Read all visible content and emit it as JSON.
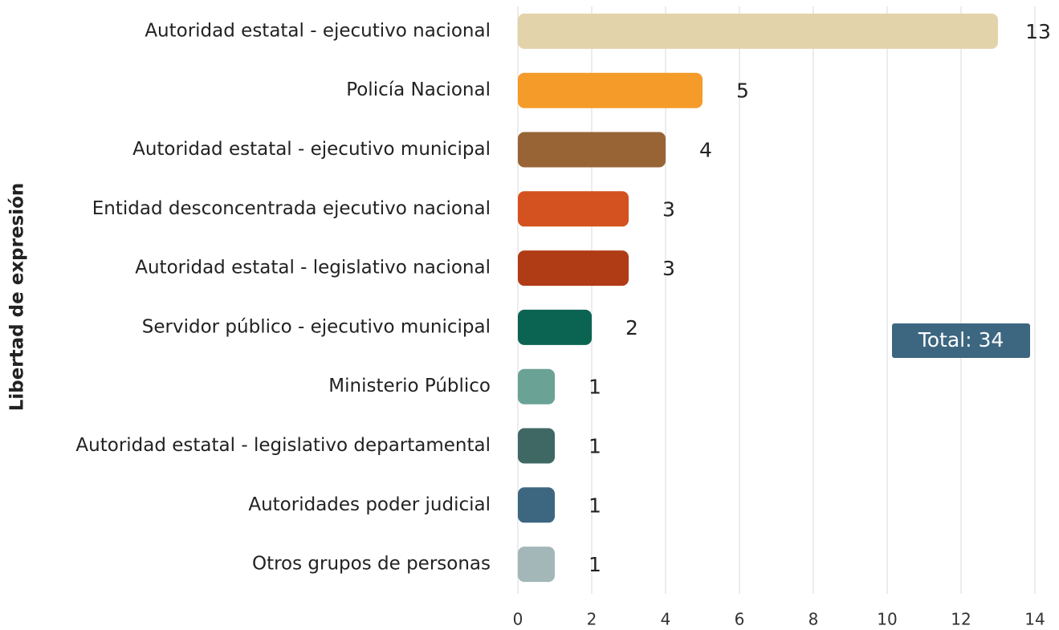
{
  "chart_data": {
    "type": "hbar",
    "ylabel": "Libertad de expresión",
    "annotation": "Total: 34",
    "categories": [
      "Autoridad estatal - ejecutivo nacional",
      "Policía Nacional",
      "Autoridad estatal - ejecutivo municipal",
      "Entidad desconcentrada ejecutivo nacional",
      "Autoridad estatal - legislativo nacional",
      "Servidor público - ejecutivo municipal",
      "Ministerio Público",
      "Autoridad estatal - legislativo departamental",
      "Autoridades poder judicial",
      "Otros grupos de personas"
    ],
    "values": [
      13,
      5,
      4,
      3,
      3,
      2,
      1,
      1,
      1,
      1
    ],
    "colors": [
      "#e3d3ab",
      "#f59b2a",
      "#986436",
      "#d3521f",
      "#b03c16",
      "#0b6451",
      "#6aa296",
      "#3f6865",
      "#3d6680",
      "#a3b6b8"
    ],
    "xlim": [
      0,
      14
    ],
    "xticks": [
      0,
      2,
      4,
      6,
      8,
      10,
      12,
      14
    ],
    "grid": true
  }
}
